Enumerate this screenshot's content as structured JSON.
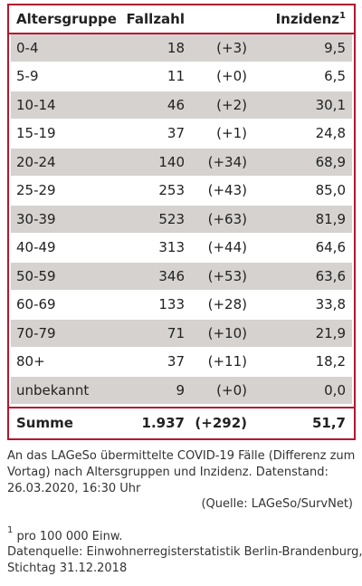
{
  "table": {
    "header": [
      "Altersgruppe",
      "Fallzahl",
      "Inzidenz"
    ],
    "header_footnote_marker": "1",
    "rows": [
      [
        "0-4",
        "18",
        "(+3)",
        "9,5"
      ],
      [
        "5-9",
        "11",
        "(+0)",
        "6,5"
      ],
      [
        "10-14",
        "46",
        "(+2)",
        "30,1"
      ],
      [
        "15-19",
        "37",
        "(+1)",
        "24,8"
      ],
      [
        "20-24",
        "140",
        "(+34)",
        "68,9"
      ],
      [
        "25-29",
        "253",
        "(+43)",
        "85,0"
      ],
      [
        "30-39",
        "523",
        "(+63)",
        "81,9"
      ],
      [
        "40-49",
        "313",
        "(+44)",
        "64,6"
      ],
      [
        "50-59",
        "346",
        "(+53)",
        "63,6"
      ],
      [
        "60-69",
        "133",
        "(+28)",
        "33,8"
      ],
      [
        "70-79",
        "71",
        "(+10)",
        "21,9"
      ],
      [
        "80+",
        "37",
        "(+11)",
        "18,2"
      ],
      [
        "unbekannt",
        "9",
        "(+0)",
        "0,0"
      ]
    ],
    "total": [
      "Summe",
      "1.937",
      "(+292)",
      "51,7"
    ]
  },
  "caption_lines": [
    "An das LAGeSo übermittelte COVID-19 Fälle (Differenz zum",
    "Vortag) nach Altersgruppen und Inzidenz. Datenstand:",
    "26.03.2020, 16:30 Uhr"
  ],
  "source": "(Quelle: LAGeSo/SurvNet)",
  "footnote": {
    "marker": "1",
    "text": "pro 100 000 Einw."
  },
  "data_source_lines": [
    "Datenquelle: Einwohnerregisterstatistik Berlin-Brandenburg,",
    "Stichtag 31.12.2018"
  ]
}
